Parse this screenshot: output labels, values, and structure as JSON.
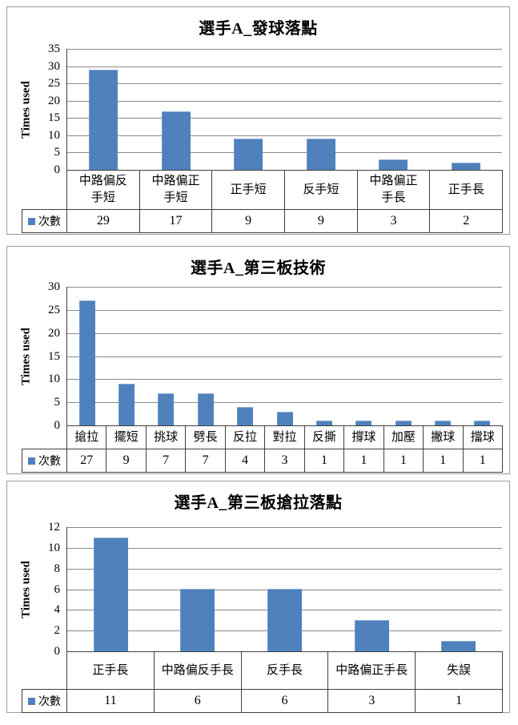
{
  "colors": {
    "bar": "#4f81bd",
    "legend_marker": "#4f81bd",
    "gridline": "#8a8a8a",
    "axis_line": "#404040",
    "table_border": "#404040",
    "box_border": "#9e9e9e",
    "background": "#ffffff"
  },
  "chart_data": [
    {
      "type": "bar",
      "title": "選手A_發球落點",
      "ylabel": "Times used",
      "legend_label": "次數",
      "categories": [
        "中路偏反手短",
        "中路偏正手短",
        "正手短",
        "反手短",
        "中路偏正手長",
        "正手長"
      ],
      "values": [
        29,
        17,
        9,
        9,
        3,
        2
      ],
      "ylim": [
        0,
        35
      ],
      "ytick_step": 5,
      "grid": true,
      "legend_position": "data-table-left"
    },
    {
      "type": "bar",
      "title": "選手A_第三板技術",
      "ylabel": "Times used",
      "legend_label": "次數",
      "categories": [
        "搶拉",
        "擺短",
        "挑球",
        "劈長",
        "反拉",
        "對拉",
        "反撕",
        "撐球",
        "加壓",
        "撇球",
        "擋球"
      ],
      "values": [
        27,
        9,
        7,
        7,
        4,
        3,
        1,
        1,
        1,
        1,
        1
      ],
      "ylim": [
        0,
        30
      ],
      "ytick_step": 5,
      "grid": true,
      "legend_position": "data-table-left"
    },
    {
      "type": "bar",
      "title": "選手A_第三板搶拉落點",
      "ylabel": "Times used",
      "legend_label": "次數",
      "categories": [
        "正手長",
        "中路偏反手長",
        "反手長",
        "中路偏正手長",
        "失誤"
      ],
      "values": [
        11,
        6,
        6,
        3,
        1
      ],
      "ylim": [
        0,
        12
      ],
      "ytick_step": 2,
      "grid": true,
      "legend_position": "data-table-left"
    }
  ]
}
